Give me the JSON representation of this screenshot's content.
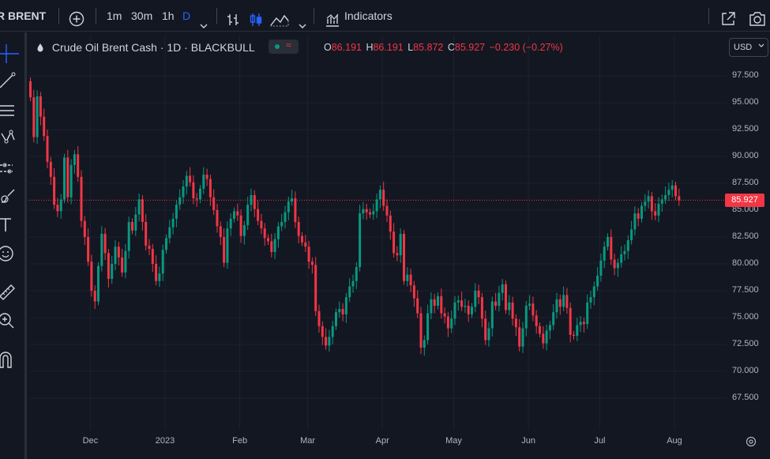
{
  "toolbar": {
    "symbol": "R BRENT",
    "intervals": [
      "1m",
      "30m",
      "1h",
      "D"
    ],
    "active_interval": "D",
    "indicators_label": "Indicators"
  },
  "legend": {
    "title": "Crude Oil Brent Cash · 1D · BLACKBULL",
    "open_label": "O",
    "open": "86.191",
    "high_label": "H",
    "high": "86.191",
    "low_label": "L",
    "low": "85.872",
    "close_label": "C",
    "close": "85.927",
    "change": "−0.230 (−0.27%)"
  },
  "currency": "USD",
  "last_price": "85.927",
  "colors": {
    "up": "#089981",
    "down": "#f23645",
    "background": "#131722",
    "grid": "#1e222d",
    "accent": "#2962ff"
  },
  "icons": [
    "add-symbol-icon",
    "bars-style-icon",
    "candles-style-icon",
    "area-style-icon",
    "chevron-down-icon",
    "indicators-icon",
    "fullscreen-icon",
    "screenshot-icon",
    "crosshair-icon",
    "trend-line-icon",
    "fib-icon",
    "pattern-icon",
    "projection-icon",
    "brush-icon",
    "text-icon",
    "emoji-icon",
    "ruler-icon",
    "zoom-icon",
    "magnet-icon",
    "settings-icon"
  ],
  "chart_data": {
    "type": "candlestick",
    "y_ticks": [
      "97.500",
      "95.000",
      "92.500",
      "90.000",
      "87.500",
      "85.000",
      "82.500",
      "80.000",
      "77.500",
      "75.000",
      "72.500",
      "70.000",
      "67.500"
    ],
    "ylim": [
      67.5,
      97.5
    ],
    "x_ticks": [
      {
        "label": "Dec",
        "index": 18
      },
      {
        "label": "2023",
        "index": 40
      },
      {
        "label": "Feb",
        "index": 62
      },
      {
        "label": "Mar",
        "index": 82
      },
      {
        "label": "Apr",
        "index": 104
      },
      {
        "label": "May",
        "index": 125
      },
      {
        "label": "Jun",
        "index": 147
      },
      {
        "label": "Jul",
        "index": 168
      },
      {
        "label": "Aug",
        "index": 190
      }
    ],
    "series_close": [
      95.5,
      91.8,
      95.6,
      93.7,
      91.9,
      89.5,
      88.1,
      85.5,
      84.9,
      86.0,
      89.9,
      86.2,
      89.2,
      90.2,
      88.1,
      84.0,
      82.5,
      80.2,
      77.5,
      76.5,
      79.8,
      82.8,
      81.0,
      78.6,
      80.0,
      81.6,
      80.6,
      79.2,
      81.2,
      83.9,
      83.1,
      84.6,
      86.0,
      83.9,
      81.7,
      81.4,
      80.0,
      78.4,
      79.1,
      81.3,
      82.4,
      83.4,
      84.2,
      85.5,
      86.2,
      87.2,
      88.2,
      87.6,
      86.1,
      86.0,
      87.0,
      88.3,
      87.9,
      86.2,
      85.0,
      83.5,
      82.5,
      80.1,
      83.3,
      84.2,
      84.9,
      84.5,
      82.6,
      83.6,
      85.5,
      86.4,
      85.1,
      84.0,
      83.3,
      82.4,
      82.1,
      81.1,
      82.3,
      83.5,
      83.9,
      84.8,
      85.8,
      86.1,
      83.9,
      82.6,
      82.0,
      81.6,
      80.2,
      79.9,
      75.6,
      74.2,
      73.2,
      72.4,
      73.2,
      74.2,
      75.5,
      75.8,
      75.3,
      76.9,
      77.9,
      78.4,
      79.7,
      84.7,
      85.1,
      84.8,
      84.6,
      84.9,
      86.0,
      86.9,
      85.4,
      84.5,
      83.0,
      81.0,
      80.8,
      82.8,
      78.4,
      79.0,
      78.0,
      76.8,
      75.4,
      72.2,
      72.9,
      75.4,
      76.7,
      76.1,
      77.0,
      75.4,
      75.1,
      74.0,
      74.9,
      76.4,
      76.6,
      76.0,
      76.1,
      75.3,
      76.0,
      77.5,
      76.9,
      74.9,
      72.9,
      74.0,
      76.5,
      76.1,
      77.3,
      78.1,
      75.7,
      76.4,
      74.9,
      74.1,
      72.3,
      74.0,
      76.1,
      76.3,
      75.2,
      74.2,
      73.5,
      72.6,
      73.8,
      74.3,
      75.5,
      76.7,
      76.0,
      77.1,
      75.9,
      73.4,
      73.3,
      74.3,
      74.6,
      74.4,
      76.4,
      76.9,
      77.9,
      78.9,
      80.3,
      81.6,
      82.5,
      80.4,
      79.6,
      80.1,
      80.9,
      81.2,
      82.2,
      83.2,
      84.7,
      84.2,
      85.4,
      85.8,
      86.3,
      84.9,
      84.5,
      85.6,
      86.0,
      86.4,
      86.9,
      87.3,
      86.3,
      85.9
    ]
  }
}
